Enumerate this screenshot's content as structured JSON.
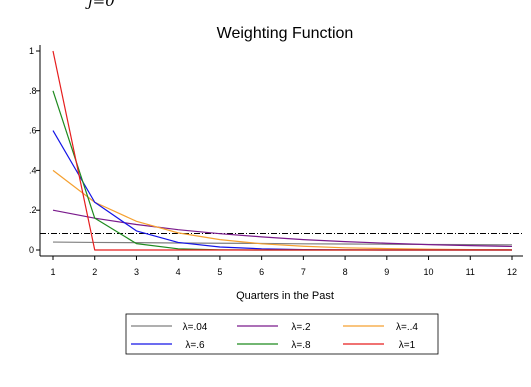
{
  "header_fragment": "j=0",
  "chart_data": {
    "type": "line",
    "title": "Weighting Function",
    "xlabel": "Quarters in the Past",
    "ylabel": "",
    "x": [
      1,
      2,
      3,
      4,
      5,
      6,
      7,
      8,
      9,
      10,
      11,
      12
    ],
    "xlim": [
      1,
      12
    ],
    "ylim": [
      0,
      1
    ],
    "x_ticks": [
      "1",
      "2",
      "3",
      "4",
      "5",
      "6",
      "7",
      "8",
      "9",
      "10",
      "11",
      "12"
    ],
    "y_ticks": [
      {
        "value": 0,
        "label": "0"
      },
      {
        "value": 0.2,
        "label": ".2"
      },
      {
        "value": 0.4,
        "label": ".4"
      },
      {
        "value": 0.6,
        "label": ".6"
      },
      {
        "value": 0.8,
        "label": ".8"
      },
      {
        "value": 1,
        "label": "1"
      }
    ],
    "grid": false,
    "legend_position": "bottom",
    "reference_line": {
      "y": 0.083,
      "style": "dash-dot",
      "color": "#000000"
    },
    "series": [
      {
        "name": "λ=.04",
        "color": "#7f7f7f",
        "values": [
          0.04,
          0.038,
          0.037,
          0.035,
          0.034,
          0.033,
          0.031,
          0.03,
          0.029,
          0.028,
          0.027,
          0.026
        ]
      },
      {
        "name": "λ=.2",
        "color": "#7a1a8c",
        "values": [
          0.2,
          0.16,
          0.128,
          0.102,
          0.082,
          0.066,
          0.052,
          0.042,
          0.034,
          0.027,
          0.022,
          0.018
        ]
      },
      {
        "name": "λ=..4",
        "color": "#f5a030",
        "values": [
          0.4,
          0.24,
          0.144,
          0.086,
          0.052,
          0.031,
          0.019,
          0.011,
          0.007,
          0.004,
          0.002,
          0.001
        ]
      },
      {
        "name": "λ=.6",
        "color": "#1414e6",
        "values": [
          0.6,
          0.24,
          0.096,
          0.038,
          0.015,
          0.006,
          0.002,
          0.001,
          0.0,
          0.0,
          0.0,
          0.0
        ]
      },
      {
        "name": "λ=.8",
        "color": "#1e8a1e",
        "values": [
          0.8,
          0.16,
          0.032,
          0.006,
          0.001,
          0.0,
          0.0,
          0.0,
          0.0,
          0.0,
          0.0,
          0.0
        ]
      },
      {
        "name": "λ=1",
        "color": "#e61e1e",
        "values": [
          1.0,
          0.0,
          0.0,
          0.0,
          0.0,
          0.0,
          0.0,
          0.0,
          0.0,
          0.0,
          0.0,
          0.0
        ]
      }
    ]
  }
}
